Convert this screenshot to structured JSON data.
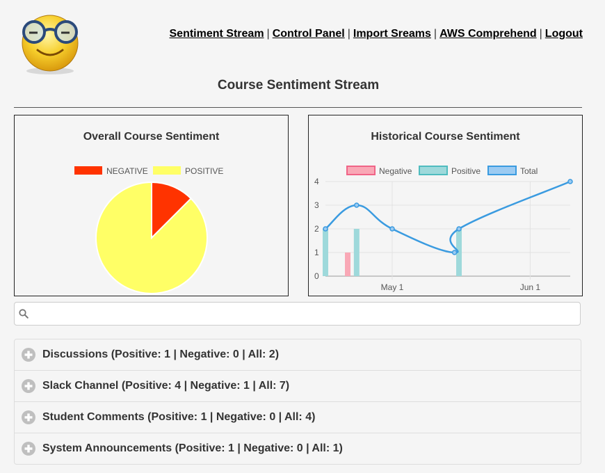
{
  "nav": {
    "items": [
      "Sentiment Stream",
      "Control Panel",
      "Import Sreams",
      "AWS Comprehend",
      "Logout"
    ]
  },
  "page_title": "Course Sentiment Stream",
  "panels": {
    "overall": {
      "title": "Overall Course Sentiment",
      "legend": [
        "NEGATIVE",
        "POSITIVE"
      ]
    },
    "historical": {
      "title": "Historical Course Sentiment",
      "legend": [
        "Negative",
        "Positive",
        "Total"
      ],
      "y_ticks": [
        "0",
        "1",
        "2",
        "3",
        "4"
      ],
      "x_ticks": [
        "May 1",
        "Jun 1"
      ]
    }
  },
  "search": {
    "placeholder": ""
  },
  "accordion": [
    "Discussions (Positive: 1 | Negative: 0 | All: 2)",
    "Slack Channel (Positive: 4 | Negative: 1 | All: 7)",
    "Student Comments (Positive: 1 | Negative: 0 | All: 4)",
    "System Announcements (Positive: 1 | Negative: 0 | All: 1)"
  ],
  "colors": {
    "negative": "#ff3300",
    "positive": "#ffff66",
    "hist_negative": "#f9a8b6",
    "hist_positive": "#9ed9db",
    "hist_total": "#3a9be0"
  },
  "chart_data": [
    {
      "type": "pie",
      "title": "Overall Course Sentiment",
      "categories": [
        "NEGATIVE",
        "POSITIVE"
      ],
      "values": [
        1,
        7
      ],
      "legend": "top"
    },
    {
      "type": "line",
      "title": "Historical Course Sentiment",
      "ylim": [
        0,
        4
      ],
      "x_tick_labels": [
        "May 1",
        "Jun 1"
      ],
      "legend": "top",
      "grid": true,
      "series": [
        {
          "name": "Negative",
          "type": "bar",
          "x": [
            "2018-04-21"
          ],
          "values": [
            1
          ]
        },
        {
          "name": "Positive",
          "type": "bar",
          "x": [
            "2018-04-16",
            "2018-04-23",
            "2018-05-16"
          ],
          "values": [
            2,
            2,
            2
          ]
        },
        {
          "name": "Total",
          "type": "line",
          "x": [
            "2018-04-16",
            "2018-04-23",
            "2018-05-01",
            "2018-05-15",
            "2018-05-16",
            "2018-06-10"
          ],
          "values": [
            2,
            3,
            2,
            1,
            2,
            4
          ]
        }
      ]
    }
  ]
}
